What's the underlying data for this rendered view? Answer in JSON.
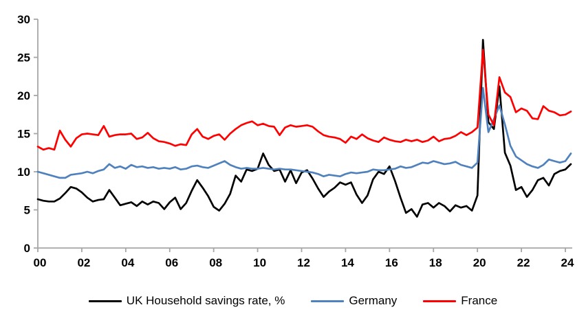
{
  "chart_data": {
    "type": "line",
    "title": "",
    "xlabel": "",
    "ylabel": "",
    "frequency": "quarterly",
    "x_start_year": 2000,
    "x_step_years": 0.25,
    "grid": false,
    "legend_position": "bottom",
    "x_axis": {
      "tick_years": [
        0,
        2,
        4,
        6,
        8,
        10,
        12,
        14,
        16,
        18,
        20,
        22,
        24
      ],
      "tick_labels": [
        "00",
        "02",
        "04",
        "06",
        "08",
        "10",
        "12",
        "14",
        "16",
        "18",
        "20",
        "22",
        "24"
      ],
      "range_years": [
        2000,
        2024.5
      ]
    },
    "y_axis": {
      "ticks": [
        0,
        5,
        10,
        15,
        20,
        25,
        30
      ],
      "tick_labels": [
        "0",
        "5",
        "10",
        "15",
        "20",
        "25",
        "30"
      ],
      "ylim": [
        0,
        30
      ]
    },
    "series": [
      {
        "name": "UK Household savings rate, %",
        "color": "#000000",
        "values": [
          6.4,
          6.2,
          6.1,
          6.1,
          6.5,
          7.2,
          8.0,
          7.8,
          7.3,
          6.6,
          6.1,
          6.3,
          6.4,
          7.6,
          6.6,
          5.6,
          5.8,
          6.0,
          5.5,
          6.1,
          5.7,
          6.1,
          5.9,
          5.1,
          6.0,
          6.6,
          5.1,
          5.9,
          7.5,
          8.9,
          7.9,
          6.8,
          5.4,
          4.9,
          5.8,
          7.1,
          9.5,
          8.7,
          10.3,
          10.1,
          10.4,
          12.4,
          10.9,
          10.1,
          10.3,
          8.7,
          10.2,
          8.5,
          9.9,
          10.2,
          9.1,
          7.8,
          6.7,
          7.4,
          7.9,
          8.6,
          8.3,
          8.6,
          7.0,
          5.9,
          6.9,
          9.0,
          10.0,
          9.7,
          10.7,
          8.8,
          6.6,
          4.6,
          5.1,
          4.1,
          5.7,
          5.9,
          5.3,
          5.9,
          5.5,
          4.8,
          5.6,
          5.3,
          5.5,
          4.9,
          6.9,
          27.3,
          16.5,
          15.6,
          21.2,
          12.5,
          10.8,
          7.6,
          8.0,
          6.7,
          7.6,
          8.9,
          9.2,
          8.2,
          9.7,
          10.1,
          10.3,
          11.0
        ]
      },
      {
        "name": "Germany",
        "color": "#4F81BD",
        "values": [
          10.0,
          9.8,
          9.6,
          9.4,
          9.2,
          9.2,
          9.6,
          9.7,
          9.8,
          10.0,
          9.8,
          10.1,
          10.3,
          11.0,
          10.5,
          10.7,
          10.4,
          10.9,
          10.6,
          10.7,
          10.5,
          10.6,
          10.4,
          10.5,
          10.4,
          10.6,
          10.3,
          10.4,
          10.7,
          10.8,
          10.6,
          10.5,
          10.8,
          11.1,
          11.4,
          10.9,
          10.6,
          10.4,
          10.5,
          10.4,
          10.4,
          10.5,
          10.4,
          10.3,
          10.4,
          10.3,
          10.3,
          10.2,
          10.1,
          10.0,
          9.9,
          9.7,
          9.4,
          9.6,
          9.5,
          9.4,
          9.7,
          9.9,
          9.8,
          9.9,
          10.0,
          10.3,
          10.2,
          10.2,
          10.3,
          10.4,
          10.7,
          10.5,
          10.6,
          10.9,
          11.2,
          11.1,
          11.4,
          11.2,
          11.0,
          11.1,
          11.3,
          10.9,
          10.7,
          10.5,
          11.2,
          21.0,
          15.2,
          16.9,
          18.7,
          16.2,
          13.4,
          12.0,
          11.5,
          11.0,
          10.7,
          10.5,
          10.9,
          11.6,
          11.4,
          11.2,
          11.4,
          12.4
        ]
      },
      {
        "name": "France",
        "color": "#FF0000",
        "values": [
          13.3,
          12.9,
          13.1,
          12.9,
          15.4,
          14.2,
          13.3,
          14.4,
          14.9,
          15.0,
          14.9,
          14.8,
          16.0,
          14.6,
          14.8,
          14.9,
          14.9,
          15.0,
          14.3,
          14.5,
          15.1,
          14.4,
          14.0,
          13.9,
          13.7,
          13.4,
          13.6,
          13.5,
          14.9,
          15.6,
          14.6,
          14.3,
          14.7,
          14.9,
          14.2,
          15.0,
          15.6,
          16.1,
          16.4,
          16.6,
          16.1,
          16.3,
          16.0,
          15.9,
          14.8,
          15.8,
          16.1,
          15.9,
          16.0,
          16.1,
          15.9,
          15.3,
          14.8,
          14.6,
          14.5,
          14.3,
          13.8,
          14.6,
          14.3,
          14.9,
          14.4,
          14.1,
          13.9,
          14.5,
          14.2,
          14.0,
          13.9,
          14.2,
          14.0,
          14.2,
          13.9,
          14.1,
          14.6,
          14.0,
          14.3,
          14.4,
          14.7,
          15.2,
          14.8,
          15.2,
          15.8,
          26.0,
          17.5,
          16.1,
          22.4,
          20.4,
          19.8,
          17.8,
          18.3,
          18.0,
          17.0,
          16.9,
          18.6,
          18.0,
          17.8,
          17.4,
          17.5,
          17.9
        ]
      }
    ]
  },
  "legend": {
    "items": [
      {
        "label": "UK Household savings rate, %",
        "color": "#000000"
      },
      {
        "label": "Germany",
        "color": "#4F81BD"
      },
      {
        "label": "France",
        "color": "#FF0000"
      }
    ]
  },
  "colors": {
    "axis": "#A6A6A6",
    "background": "#FFFFFF"
  }
}
